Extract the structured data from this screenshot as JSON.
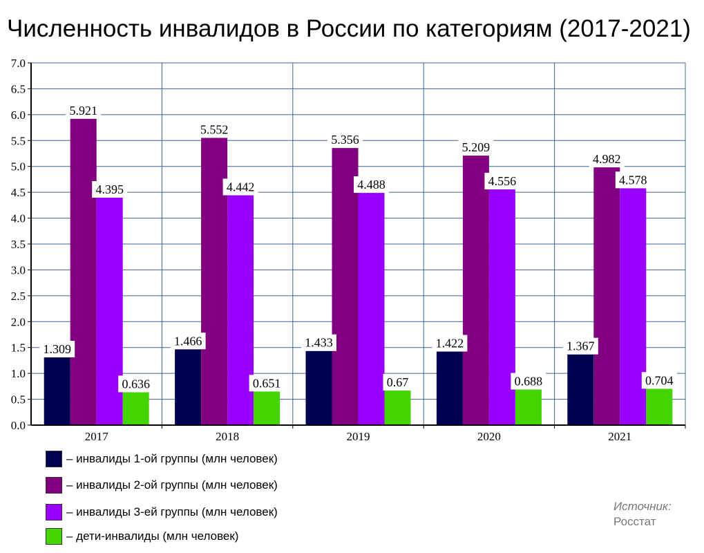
{
  "chart_data": {
    "type": "bar",
    "title": "Численность инвалидов в России по категориям (2017-2021)",
    "categories": [
      "2017",
      "2018",
      "2019",
      "2020",
      "2021"
    ],
    "series": [
      {
        "name": "– инвалиды 1-ой группы (млн человек)",
        "color": "#000050",
        "values": [
          1.309,
          1.466,
          1.433,
          1.422,
          1.367
        ],
        "labels": [
          "1.309",
          "1.466",
          "1.433",
          "1.422",
          "1.367"
        ]
      },
      {
        "name": "– инвалиды 2-ой группы (млн человек)",
        "color": "#800080",
        "values": [
          5.921,
          5.552,
          5.356,
          5.209,
          4.982
        ],
        "labels": [
          "5.921",
          "5.552",
          "5.356",
          "5.209",
          "4.982"
        ]
      },
      {
        "name": "– инвалиды 3-ей группы (млн человек)",
        "color": "#9900ff",
        "values": [
          4.395,
          4.442,
          4.488,
          4.556,
          4.578
        ],
        "labels": [
          "4.395",
          "4.442",
          "4.488",
          "4.556",
          "4.578"
        ]
      },
      {
        "name": "– дети-инвалиды (млн человек)",
        "color": "#44d400",
        "values": [
          0.636,
          0.651,
          0.67,
          0.688,
          0.704
        ],
        "labels": [
          "0.636",
          "0.651",
          "0.67",
          "0.688",
          "0.704"
        ]
      }
    ],
    "ylim": [
      0,
      7
    ],
    "yticks": [
      "0.0",
      "0.5",
      "1.0",
      "1.5",
      "2.0",
      "2.5",
      "3.0",
      "3.5",
      "4.0",
      "4.5",
      "5.0",
      "5.5",
      "6.0",
      "6.5",
      "7.0"
    ],
    "grid": true,
    "grid_color": "#3b6390",
    "legend_placement": "bottom-left"
  },
  "source": {
    "label": "Источник:",
    "value": "Росстат"
  }
}
